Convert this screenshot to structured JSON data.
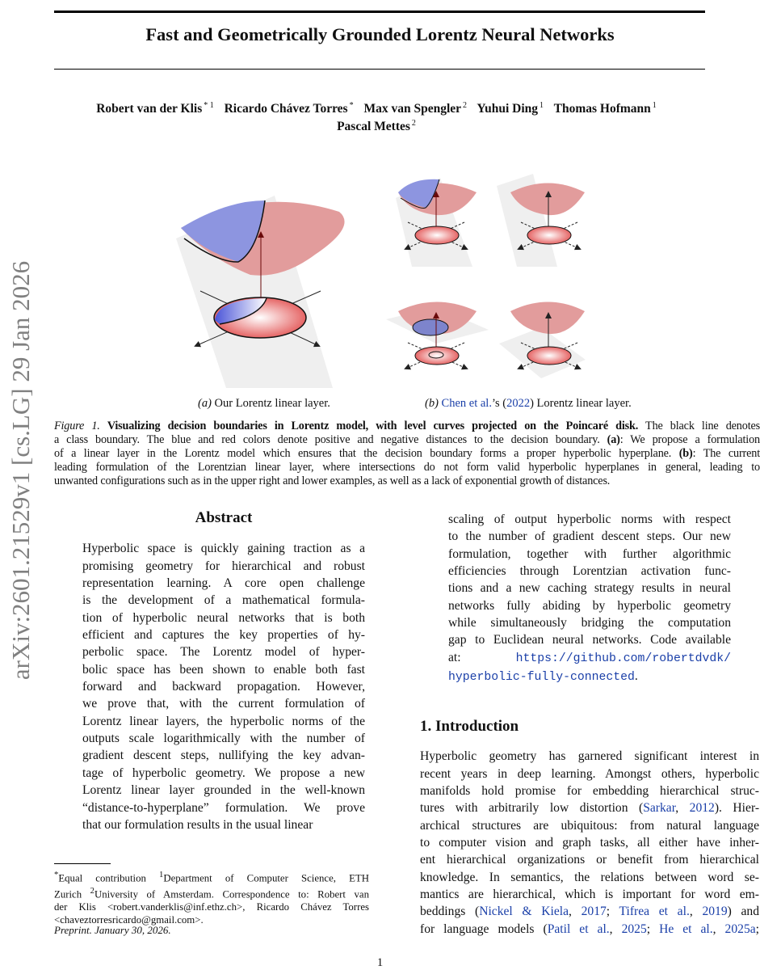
{
  "sidebar_stamp": "arXiv:2601.21529v1  [cs.LG]  29 Jan 2026",
  "title": "Fast and Geometrically Grounded Lorentz Neural Networks",
  "authors": [
    {
      "name": "Robert van der Klis",
      "aff": "* 1"
    },
    {
      "name": "Ricardo Chávez Torres",
      "aff": "*"
    },
    {
      "name": "Max van Spengler",
      "aff": "2"
    },
    {
      "name": "Yuhui Ding",
      "aff": "1"
    },
    {
      "name": "Thomas Hofmann",
      "aff": "1"
    },
    {
      "name": "Pascal Mettes",
      "aff": "2"
    }
  ],
  "figure": {
    "colors": {
      "blue": "#8d95e0",
      "red": "#e29c9c",
      "plane": "#efefef"
    },
    "sub_a_label": "(a)",
    "sub_a_text": "Our Lorentz linear layer.",
    "sub_b_label": "(b)",
    "sub_b_link": "Chen et al.",
    "sub_b_mid": "’s (",
    "sub_b_year": "2022",
    "sub_b_end": ") Lorentz linear layer.",
    "caption_lines": [
      [
        [
          "i",
          "Figure 1. "
        ],
        [
          "b",
          "Visualizing decision boundaries in Lorentz model, with level curves projected on the Poincaré disk."
        ],
        [
          "t",
          " The black line denotes"
        ]
      ],
      [
        [
          "t",
          "a class boundary. The blue and red colors denote positive and negative distances to the decision boundary. "
        ],
        [
          "b",
          "(a)"
        ],
        [
          "t",
          ": We propose a formulation"
        ]
      ],
      [
        [
          "t",
          "of a linear layer in the Lorentz model which ensures that the decision boundary forms a proper hyperbolic hyperplane. "
        ],
        [
          "b",
          "(b)"
        ],
        [
          "t",
          ": The current"
        ]
      ],
      [
        [
          "t",
          "leading formulation of the Lorentzian linear layer, where intersections do not form valid hyperbolic hyperplanes in general, leading to"
        ]
      ],
      [
        [
          "t",
          "unwanted configurations such as in the upper right and lower examples, as well as a lack of exponential growth of distances."
        ]
      ]
    ]
  },
  "abstract": {
    "heading": "Abstract",
    "lines": [
      [
        [
          "t",
          "Hyperbolic space is quickly gaining traction as a"
        ]
      ],
      [
        [
          "t",
          "promising geometry for hierarchical and robust"
        ]
      ],
      [
        [
          "t",
          "representation learning. A core open challenge"
        ]
      ],
      [
        [
          "t",
          "is the development of a mathematical formula-"
        ]
      ],
      [
        [
          "t",
          "tion of hyperbolic neural networks that is both"
        ]
      ],
      [
        [
          "t",
          "efficient and captures the key properties of hy-"
        ]
      ],
      [
        [
          "t",
          "perbolic space. The Lorentz model of hyper-"
        ]
      ],
      [
        [
          "t",
          "bolic space has been shown to enable both fast"
        ]
      ],
      [
        [
          "t",
          "forward and backward propagation. However,"
        ]
      ],
      [
        [
          "t",
          "we prove that, with the current formulation of"
        ]
      ],
      [
        [
          "t",
          "Lorentz linear layers, the hyperbolic norms of the"
        ]
      ],
      [
        [
          "t",
          "outputs scale logarithmically with the number of"
        ]
      ],
      [
        [
          "t",
          "gradient descent steps, nullifying the key advan-"
        ]
      ],
      [
        [
          "t",
          "tage of hyperbolic geometry. We propose a new"
        ]
      ],
      [
        [
          "t",
          "Lorentz linear layer grounded in the well-known"
        ]
      ],
      [
        [
          "t",
          "“distance-to-hyperplane” formulation. We prove"
        ]
      ],
      [
        [
          "t",
          "that our formulation results in the usual linear"
        ]
      ],
      [
        [
          "t",
          "scaling of output hyperbolic norms with respect"
        ]
      ],
      [
        [
          "t",
          "to the number of gradient descent steps. Our new"
        ]
      ],
      [
        [
          "t",
          "formulation, together with further algorithmic"
        ]
      ],
      [
        [
          "t",
          "efficiencies through Lorentzian activation func-"
        ]
      ],
      [
        [
          "t",
          "tions and a new caching strategy results in neural"
        ]
      ],
      [
        [
          "t",
          "networks fully abiding by hyperbolic geometry"
        ]
      ],
      [
        [
          "t",
          "while simultaneously bridging the computation"
        ]
      ],
      [
        [
          "t",
          "gap to Euclidean neural networks. Code available"
        ]
      ],
      [
        [
          "t",
          "at: "
        ],
        [
          "m",
          "https://github.com/robertdvdk/"
        ]
      ],
      [
        [
          "m",
          "hyperbolic-fully-connected"
        ],
        [
          "t",
          "."
        ]
      ]
    ]
  },
  "introduction": {
    "heading": "1. Introduction",
    "lines": [
      [
        [
          "t",
          "Hyperbolic geometry has garnered significant interest in"
        ]
      ],
      [
        [
          "t",
          "recent years in deep learning. Amongst others, hyperbolic"
        ]
      ],
      [
        [
          "t",
          "manifolds hold promise for embedding hierarchical struc-"
        ]
      ],
      [
        [
          "t",
          "tures with arbitrarily low distortion ("
        ],
        [
          "l",
          "Sarkar"
        ],
        [
          "t",
          ", "
        ],
        [
          "l",
          "2012"
        ],
        [
          "t",
          "). Hier-"
        ]
      ],
      [
        [
          "t",
          "archical structures are ubiquitous: from natural language"
        ]
      ],
      [
        [
          "t",
          "to computer vision and graph tasks, all either have inher-"
        ]
      ],
      [
        [
          "t",
          "ent hierarchical organizations or benefit from hierarchical"
        ]
      ],
      [
        [
          "t",
          "knowledge. In semantics, the relations between word se-"
        ]
      ],
      [
        [
          "t",
          "mantics are hierarchical, which is important for word em-"
        ]
      ],
      [
        [
          "t",
          "beddings ("
        ],
        [
          "l",
          "Nickel & Kiela"
        ],
        [
          "t",
          ", "
        ],
        [
          "l",
          "2017"
        ],
        [
          "t",
          "; "
        ],
        [
          "l",
          "Tifrea et al."
        ],
        [
          "t",
          ", "
        ],
        [
          "l",
          "2019"
        ],
        [
          "t",
          ") and"
        ]
      ],
      [
        [
          "t",
          "for language models ("
        ],
        [
          "l",
          "Patil et al."
        ],
        [
          "t",
          ", "
        ],
        [
          "l",
          "2025"
        ],
        [
          "t",
          "; "
        ],
        [
          "l",
          "He et al."
        ],
        [
          "t",
          ", "
        ],
        [
          "l",
          "2025a"
        ],
        [
          "t",
          ";"
        ]
      ]
    ]
  },
  "footnote": {
    "lines": [
      [
        [
          "s",
          "*"
        ],
        [
          "t",
          "Equal contribution  "
        ],
        [
          "s",
          "1"
        ],
        [
          "t",
          "Department of Computer Science, ETH"
        ]
      ],
      [
        [
          "t",
          "Zurich "
        ],
        [
          "s",
          "2"
        ],
        [
          "t",
          "University of Amsterdam. Correspondence to: Robert van"
        ]
      ],
      [
        [
          "t",
          "der Klis <robert.vanderklis@inf.ethz.ch>, Ricardo Chávez Torres"
        ]
      ],
      [
        [
          "t",
          "<chaveztorresricardo@gmail.com>."
        ]
      ]
    ]
  },
  "preprint": "Preprint. January 30, 2026.",
  "page_number": "1"
}
